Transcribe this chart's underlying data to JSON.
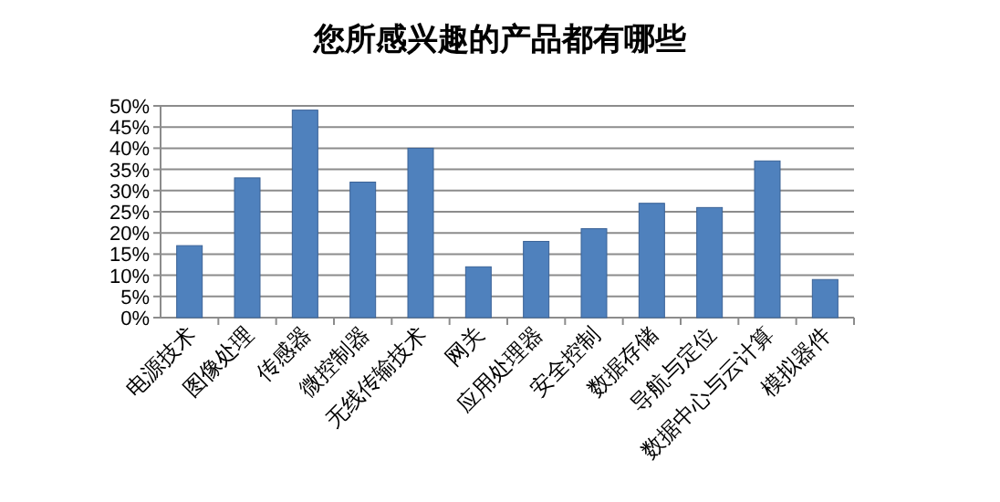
{
  "chart_data": {
    "type": "bar",
    "title": "您所感兴趣的产品都有哪些",
    "categories": [
      "电源技术",
      "图像处理",
      "传感器",
      "微控制器",
      "无线传输技术",
      "网关",
      "应用处理器",
      "安全控制",
      "数据存储",
      "导航与定位",
      "数据中心与云计算",
      "模拟器件"
    ],
    "values": [
      17,
      33,
      49,
      32,
      40,
      12,
      18,
      21,
      27,
      26,
      37,
      9
    ],
    "color": "#4f81bd",
    "ylim": [
      0,
      50
    ],
    "yticks": [
      {
        "value": 0,
        "label": "0%"
      },
      {
        "value": 5,
        "label": "5%"
      },
      {
        "value": 10,
        "label": "10%"
      },
      {
        "value": 15,
        "label": "15%"
      },
      {
        "value": 20,
        "label": "20%"
      },
      {
        "value": 25,
        "label": "25%"
      },
      {
        "value": 30,
        "label": "30%"
      },
      {
        "value": 35,
        "label": "35%"
      },
      {
        "value": 40,
        "label": "40%"
      },
      {
        "value": 45,
        "label": "45%"
      },
      {
        "value": 50,
        "label": "50%"
      }
    ],
    "grid": "y"
  }
}
